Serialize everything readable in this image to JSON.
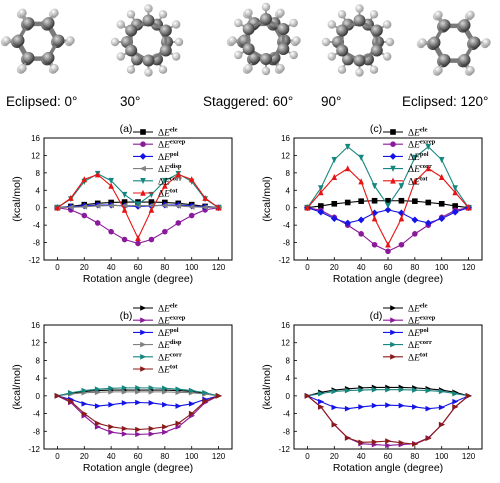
{
  "conformations": [
    "Eclipsed: 0°",
    "30°",
    "Staggered: 60°",
    "90°",
    "Eclipsed: 120°"
  ],
  "legend_names": {
    "ele": "ele",
    "exrep": "exrep",
    "pol": "pol",
    "disp": "disp",
    "corr": "corr",
    "tot": "tot"
  },
  "chart_data": [
    {
      "type": "line",
      "title": "(a)",
      "xlabel": "Rotation angle (degree)",
      "ylabel": "(kcal/mol)",
      "xlim": [
        -10,
        130
      ],
      "ylim": [
        -12,
        16
      ],
      "xticks": [
        0,
        20,
        40,
        60,
        80,
        100,
        120
      ],
      "yticks": [
        -12,
        -8,
        -4,
        0,
        4,
        8,
        12,
        16
      ],
      "legend": "top-right",
      "grid": false,
      "x": [
        0,
        10,
        20,
        30,
        40,
        50,
        60,
        70,
        80,
        90,
        100,
        110,
        120
      ],
      "series": [
        {
          "key": "ele",
          "name": "ΔE ele",
          "color": "#000000",
          "marker": "square",
          "values": [
            0,
            0.3,
            0.7,
            1.0,
            1.2,
            1.3,
            1.3,
            1.3,
            1.2,
            1.0,
            0.7,
            0.3,
            0
          ]
        },
        {
          "key": "exrep",
          "name": "ΔE exrep",
          "color": "#8b1a9b",
          "marker": "circle",
          "values": [
            0,
            -0.5,
            -1.8,
            -3.5,
            -5.5,
            -7.3,
            -8.2,
            -7.3,
            -5.5,
            -3.5,
            -1.8,
            -0.5,
            0
          ]
        },
        {
          "key": "pol",
          "name": "ΔE pol",
          "color": "#1414e6",
          "marker": "diamond",
          "values": [
            0,
            0.2,
            0.4,
            0.6,
            0.6,
            0.4,
            0.3,
            0.4,
            0.6,
            0.6,
            0.4,
            0.2,
            0
          ]
        },
        {
          "key": "disp",
          "name": "ΔE disp",
          "color": "#808080",
          "marker": "tri-left",
          "values": [
            0,
            0.1,
            0.2,
            0.4,
            0.5,
            0.5,
            0.5,
            0.5,
            0.5,
            0.4,
            0.2,
            0.1,
            0
          ]
        },
        {
          "key": "corr",
          "name": "ΔE corr",
          "color": "#16877f",
          "marker": "tri-down",
          "values": [
            0,
            2.0,
            6.0,
            7.8,
            6.2,
            3.0,
            0.8,
            3.0,
            6.2,
            7.8,
            6.0,
            2.0,
            0
          ]
        },
        {
          "key": "tot",
          "name": "ΔE tot",
          "color": "#e61414",
          "marker": "tri-up",
          "values": [
            0,
            2.2,
            6.5,
            7.6,
            5.0,
            -0.5,
            -7.0,
            -0.5,
            5.0,
            7.6,
            6.5,
            2.2,
            0
          ]
        }
      ]
    },
    {
      "type": "line",
      "title": "(c)",
      "xlabel": "Rotation angle (degree)",
      "ylabel": "(kcal/mol)",
      "xlim": [
        -10,
        130
      ],
      "ylim": [
        -12,
        16
      ],
      "xticks": [
        0,
        20,
        40,
        60,
        80,
        100,
        120
      ],
      "yticks": [
        -12,
        -8,
        -4,
        0,
        4,
        8,
        12,
        16
      ],
      "legend": "top-right",
      "grid": false,
      "x": [
        0,
        10,
        20,
        30,
        40,
        50,
        60,
        70,
        80,
        90,
        100,
        110,
        120
      ],
      "series": [
        {
          "key": "ele",
          "name": "ΔE ele",
          "color": "#000000",
          "marker": "square",
          "values": [
            0,
            0.4,
            0.9,
            1.2,
            1.5,
            1.6,
            1.6,
            1.6,
            1.5,
            1.2,
            0.9,
            0.4,
            0
          ]
        },
        {
          "key": "exrep",
          "name": "ΔE exrep",
          "color": "#8b1a9b",
          "marker": "circle",
          "values": [
            0,
            -0.6,
            -2.2,
            -4.0,
            -6.0,
            -8.5,
            -10.0,
            -8.5,
            -6.0,
            -4.0,
            -2.2,
            -0.6,
            0
          ]
        },
        {
          "key": "pol",
          "name": "ΔE pol",
          "color": "#1414e6",
          "marker": "diamond",
          "values": [
            0,
            -1.0,
            -2.5,
            -3.5,
            -2.8,
            -1.2,
            -0.5,
            -1.2,
            -2.8,
            -3.5,
            -2.5,
            -1.0,
            0
          ]
        },
        {
          "key": "corr",
          "name": "ΔE corr",
          "color": "#16877f",
          "marker": "tri-down",
          "values": [
            0,
            4.5,
            11.0,
            14.0,
            11.5,
            5.0,
            0.5,
            5.0,
            11.5,
            14.0,
            11.0,
            4.5,
            0
          ]
        },
        {
          "key": "tot",
          "name": "ΔE tot",
          "color": "#e61414",
          "marker": "tri-up",
          "values": [
            0,
            3.5,
            7.0,
            9.0,
            6.0,
            -2.5,
            -8.5,
            -2.5,
            6.0,
            9.0,
            7.0,
            3.5,
            0
          ]
        }
      ]
    },
    {
      "type": "line",
      "title": "(b)",
      "xlabel": "Rotation angle (degree)",
      "ylabel": "(kcal/mol)",
      "xlim": [
        -10,
        130
      ],
      "ylim": [
        -12,
        16
      ],
      "xticks": [
        0,
        20,
        40,
        60,
        80,
        100,
        120
      ],
      "yticks": [
        -12,
        -8,
        -4,
        0,
        4,
        8,
        12,
        16
      ],
      "legend": "top-right",
      "grid": false,
      "x": [
        0,
        10,
        20,
        30,
        40,
        50,
        60,
        70,
        80,
        90,
        100,
        110,
        120
      ],
      "series": [
        {
          "key": "ele",
          "name": "ΔE ele",
          "color": "#000000",
          "marker": "tri-right",
          "values": [
            0,
            0.6,
            1.0,
            1.2,
            1.3,
            1.3,
            1.3,
            1.3,
            1.3,
            1.2,
            1.0,
            0.6,
            0
          ]
        },
        {
          "key": "exrep",
          "name": "ΔE exrep",
          "color": "#8b1a9b",
          "marker": "tri-right",
          "values": [
            0,
            -1.5,
            -4.5,
            -7.0,
            -8.2,
            -8.6,
            -8.7,
            -8.6,
            -8.2,
            -7.0,
            -4.5,
            -1.5,
            0
          ]
        },
        {
          "key": "pol",
          "name": "ΔE pol",
          "color": "#1414e6",
          "marker": "tri-right",
          "values": [
            0,
            -0.8,
            -1.8,
            -2.3,
            -2.0,
            -1.6,
            -1.5,
            -1.6,
            -2.0,
            -2.3,
            -1.8,
            -0.8,
            0
          ]
        },
        {
          "key": "disp",
          "name": "ΔE disp",
          "color": "#808080",
          "marker": "tri-right",
          "values": [
            0,
            0.4,
            0.7,
            0.8,
            0.9,
            0.9,
            0.9,
            0.9,
            0.9,
            0.8,
            0.7,
            0.4,
            0
          ]
        },
        {
          "key": "corr",
          "name": "ΔE corr",
          "color": "#16877f",
          "marker": "tri-right",
          "values": [
            0,
            0.7,
            1.2,
            1.5,
            1.7,
            1.8,
            1.8,
            1.8,
            1.7,
            1.5,
            1.2,
            0.7,
            0
          ]
        },
        {
          "key": "tot",
          "name": "ΔE tot",
          "color": "#8b1a1a",
          "marker": "tri-right",
          "values": [
            0,
            -1.2,
            -4.0,
            -6.2,
            -7.0,
            -7.4,
            -7.6,
            -7.4,
            -7.0,
            -6.2,
            -4.0,
            -1.2,
            0
          ]
        }
      ]
    },
    {
      "type": "line",
      "title": "(d)",
      "xlabel": "Rotation angle (degree)",
      "ylabel": "(kcal/mol)",
      "xlim": [
        -10,
        130
      ],
      "ylim": [
        -12,
        16
      ],
      "xticks": [
        0,
        20,
        40,
        60,
        80,
        100,
        120
      ],
      "yticks": [
        -12,
        -8,
        -4,
        0,
        4,
        8,
        12,
        16
      ],
      "legend": "top-right",
      "grid": false,
      "x": [
        0,
        10,
        20,
        30,
        40,
        50,
        60,
        70,
        80,
        90,
        100,
        110,
        120
      ],
      "series": [
        {
          "key": "ele",
          "name": "ΔE ele",
          "color": "#000000",
          "marker": "tri-right",
          "values": [
            0,
            0.8,
            1.3,
            1.6,
            1.8,
            1.9,
            1.9,
            1.9,
            1.8,
            1.6,
            1.3,
            0.8,
            0
          ]
        },
        {
          "key": "exrep",
          "name": "ΔE exrep",
          "color": "#8b1a9b",
          "marker": "tri-right",
          "values": [
            0,
            -2.5,
            -6.5,
            -9.5,
            -10.8,
            -11.0,
            -11.2,
            -11.0,
            -10.8,
            -9.5,
            -6.5,
            -2.5,
            0
          ]
        },
        {
          "key": "pol",
          "name": "ΔE pol",
          "color": "#1414e6",
          "marker": "tri-right",
          "values": [
            0,
            -1.3,
            -2.6,
            -2.9,
            -2.5,
            -2.2,
            -2.1,
            -2.2,
            -2.5,
            -2.9,
            -2.6,
            -1.3,
            0
          ]
        },
        {
          "key": "corr",
          "name": "ΔE corr",
          "color": "#16877f",
          "marker": "tri-right",
          "values": [
            0,
            0.5,
            1.0,
            1.2,
            1.3,
            1.4,
            1.4,
            1.4,
            1.3,
            1.2,
            1.0,
            0.5,
            0
          ]
        },
        {
          "key": "tot",
          "name": "ΔE tot",
          "color": "#8b1a1a",
          "marker": "tri-right",
          "values": [
            0,
            -2.5,
            -6.5,
            -9.5,
            -10.5,
            -10.4,
            -10.2,
            -10.6,
            -10.9,
            -9.6,
            -6.5,
            -2.5,
            0
          ]
        }
      ]
    }
  ]
}
